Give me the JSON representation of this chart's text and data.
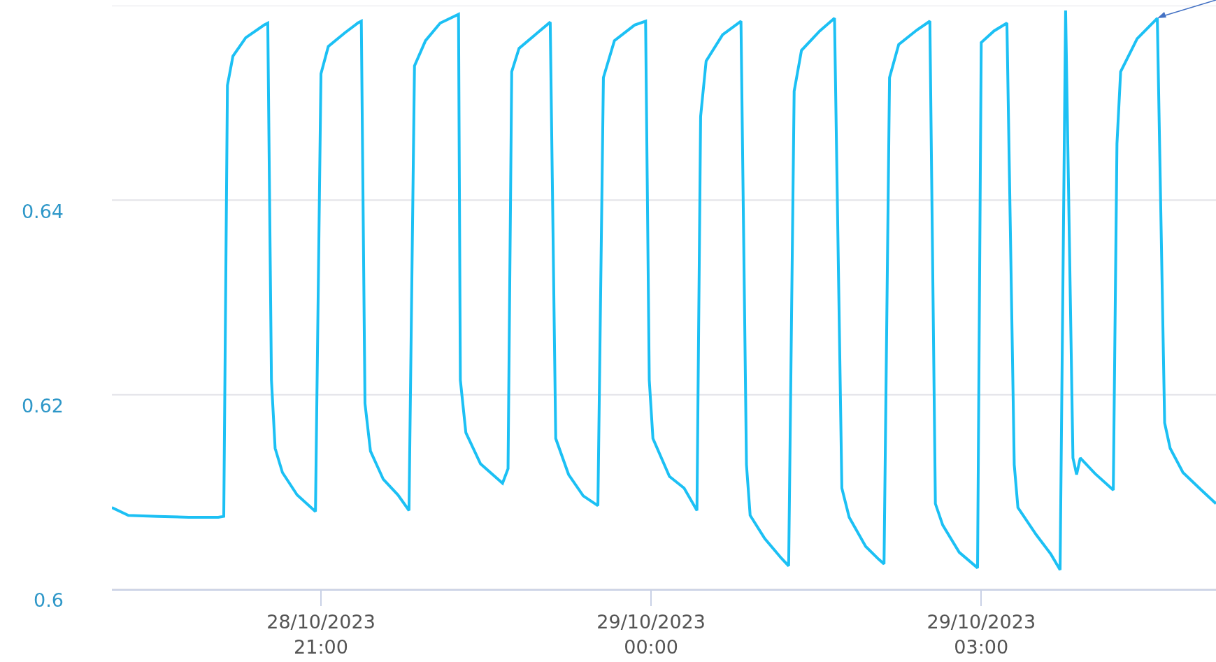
{
  "chart_data": {
    "type": "line",
    "x": [
      "2023-10-28T19:06",
      "2023-10-28T19:15",
      "2023-10-28T19:31",
      "2023-10-28T19:48",
      "2023-10-28T20:04",
      "2023-10-28T20:07",
      "2023-10-28T20:09",
      "2023-10-28T20:12",
      "2023-10-28T20:19",
      "2023-10-28T20:29",
      "2023-10-28T20:31",
      "2023-10-28T20:33",
      "2023-10-28T20:35",
      "2023-10-28T20:39",
      "2023-10-28T20:47",
      "2023-10-28T20:57",
      "2023-10-28T21:00",
      "2023-10-28T21:04",
      "2023-10-28T21:13",
      "2023-10-28T21:20",
      "2023-10-28T21:22",
      "2023-10-28T21:24",
      "2023-10-28T21:27",
      "2023-10-28T21:34",
      "2023-10-28T21:42",
      "2023-10-28T21:48",
      "2023-10-28T21:51",
      "2023-10-28T21:57",
      "2023-10-28T22:05",
      "2023-10-28T22:15",
      "2023-10-28T22:16",
      "2023-10-28T22:19",
      "2023-10-28T22:27",
      "2023-10-28T22:39",
      "2023-10-28T22:42",
      "2023-10-28T22:44",
      "2023-10-28T22:48",
      "2023-10-28T22:58",
      "2023-10-28T23:05",
      "2023-10-28T23:08",
      "2023-10-28T23:15",
      "2023-10-28T23:23",
      "2023-10-28T23:31",
      "2023-10-28T23:34",
      "2023-10-28T23:40",
      "2023-10-28T23:51",
      "2023-10-28T23:57",
      "2023-10-28T23:59",
      "2023-10-29T00:01",
      "2023-10-29T00:10",
      "2023-10-29T00:18",
      "2023-10-29T00:25",
      "2023-10-29T00:27",
      "2023-10-29T00:30",
      "2023-10-29T00:39",
      "2023-10-29T00:49",
      "2023-10-29T00:52",
      "2023-10-29T00:54",
      "2023-10-29T01:02",
      "2023-10-29T01:11",
      "2023-10-29T01:15",
      "2023-10-29T01:18",
      "2023-10-29T01:22",
      "2023-10-29T01:32",
      "2023-10-29T01:40",
      "2023-10-29T01:44",
      "2023-10-29T01:48",
      "2023-10-29T01:57",
      "2023-10-29T02:04",
      "2023-10-29T02:07",
      "2023-10-29T02:10",
      "2023-10-29T02:15",
      "2023-10-29T02:25",
      "2023-10-29T02:32",
      "2023-10-29T02:35",
      "2023-10-29T02:39",
      "2023-10-29T02:48",
      "2023-10-29T02:58",
      "2023-10-29T03:00",
      "2023-10-29T03:07",
      "2023-10-29T03:14",
      "2023-10-29T03:18",
      "2023-10-29T03:20",
      "2023-10-29T03:30",
      "2023-10-29T03:38",
      "2023-10-29T03:43",
      "2023-10-29T03:46",
      "2023-10-29T03:50",
      "2023-10-29T03:52",
      "2023-10-29T03:54",
      "2023-10-29T04:02",
      "2023-10-29T04:12",
      "2023-10-29T04:14",
      "2023-10-29T04:16",
      "2023-10-29T04:25",
      "2023-10-29T04:36",
      "2023-10-29T04:40",
      "2023-10-29T04:43",
      "2023-10-29T04:50",
      "2023-10-29T05:00",
      "2023-10-29T05:08"
    ],
    "series": [
      {
        "color": "#1cc0f4",
        "values": [
          0.6084,
          0.6076,
          0.6075,
          0.6074,
          0.6074,
          0.6075,
          0.6518,
          0.6548,
          0.6567,
          0.658,
          0.6582,
          0.6215,
          0.6145,
          0.612,
          0.6097,
          0.608,
          0.653,
          0.6558,
          0.6572,
          0.6582,
          0.6584,
          0.6191,
          0.6142,
          0.6113,
          0.6097,
          0.6081,
          0.6538,
          0.6564,
          0.6582,
          0.6591,
          0.6215,
          0.6161,
          0.6129,
          0.6109,
          0.6124,
          0.6532,
          0.6556,
          0.6572,
          0.6583,
          0.6155,
          0.6118,
          0.6096,
          0.6086,
          0.6526,
          0.6564,
          0.658,
          0.6584,
          0.6215,
          0.6155,
          0.6116,
          0.6104,
          0.6081,
          0.6486,
          0.6543,
          0.657,
          0.6584,
          0.6128,
          0.6076,
          0.6052,
          0.6032,
          0.6024,
          0.6512,
          0.6554,
          0.6574,
          0.6587,
          0.6104,
          0.6074,
          0.6044,
          0.6031,
          0.6026,
          0.6526,
          0.656,
          0.6575,
          0.6584,
          0.6088,
          0.6066,
          0.6038,
          0.6022,
          0.6562,
          0.6574,
          0.6582,
          0.6128,
          0.6084,
          0.6056,
          0.6036,
          0.602,
          0.6595,
          0.6135,
          0.6118,
          0.6135,
          0.6119,
          0.6102,
          0.6458,
          0.6532,
          0.6566,
          0.6587,
          0.6171,
          0.6145,
          0.612,
          0.6102,
          0.6088
        ]
      }
    ],
    "xlim": [
      "2023-10-28T19:06",
      "2023-10-29T05:08"
    ],
    "xticks": [
      {
        "value": "2023-10-28T21:00",
        "label": "28/10/2023\n21:00"
      },
      {
        "value": "2023-10-29T00:00",
        "label": "29/10/2023\n00:00"
      },
      {
        "value": "2023-10-29T03:00",
        "label": "29/10/2023\n03:00"
      }
    ],
    "ylim": [
      0.6,
      0.66
    ],
    "yticks": [
      0.6,
      0.62,
      0.64,
      {
        "value": 0.66,
        "label": null
      }
    ],
    "grid": "y",
    "marker": "none",
    "line_style": "solid"
  }
}
